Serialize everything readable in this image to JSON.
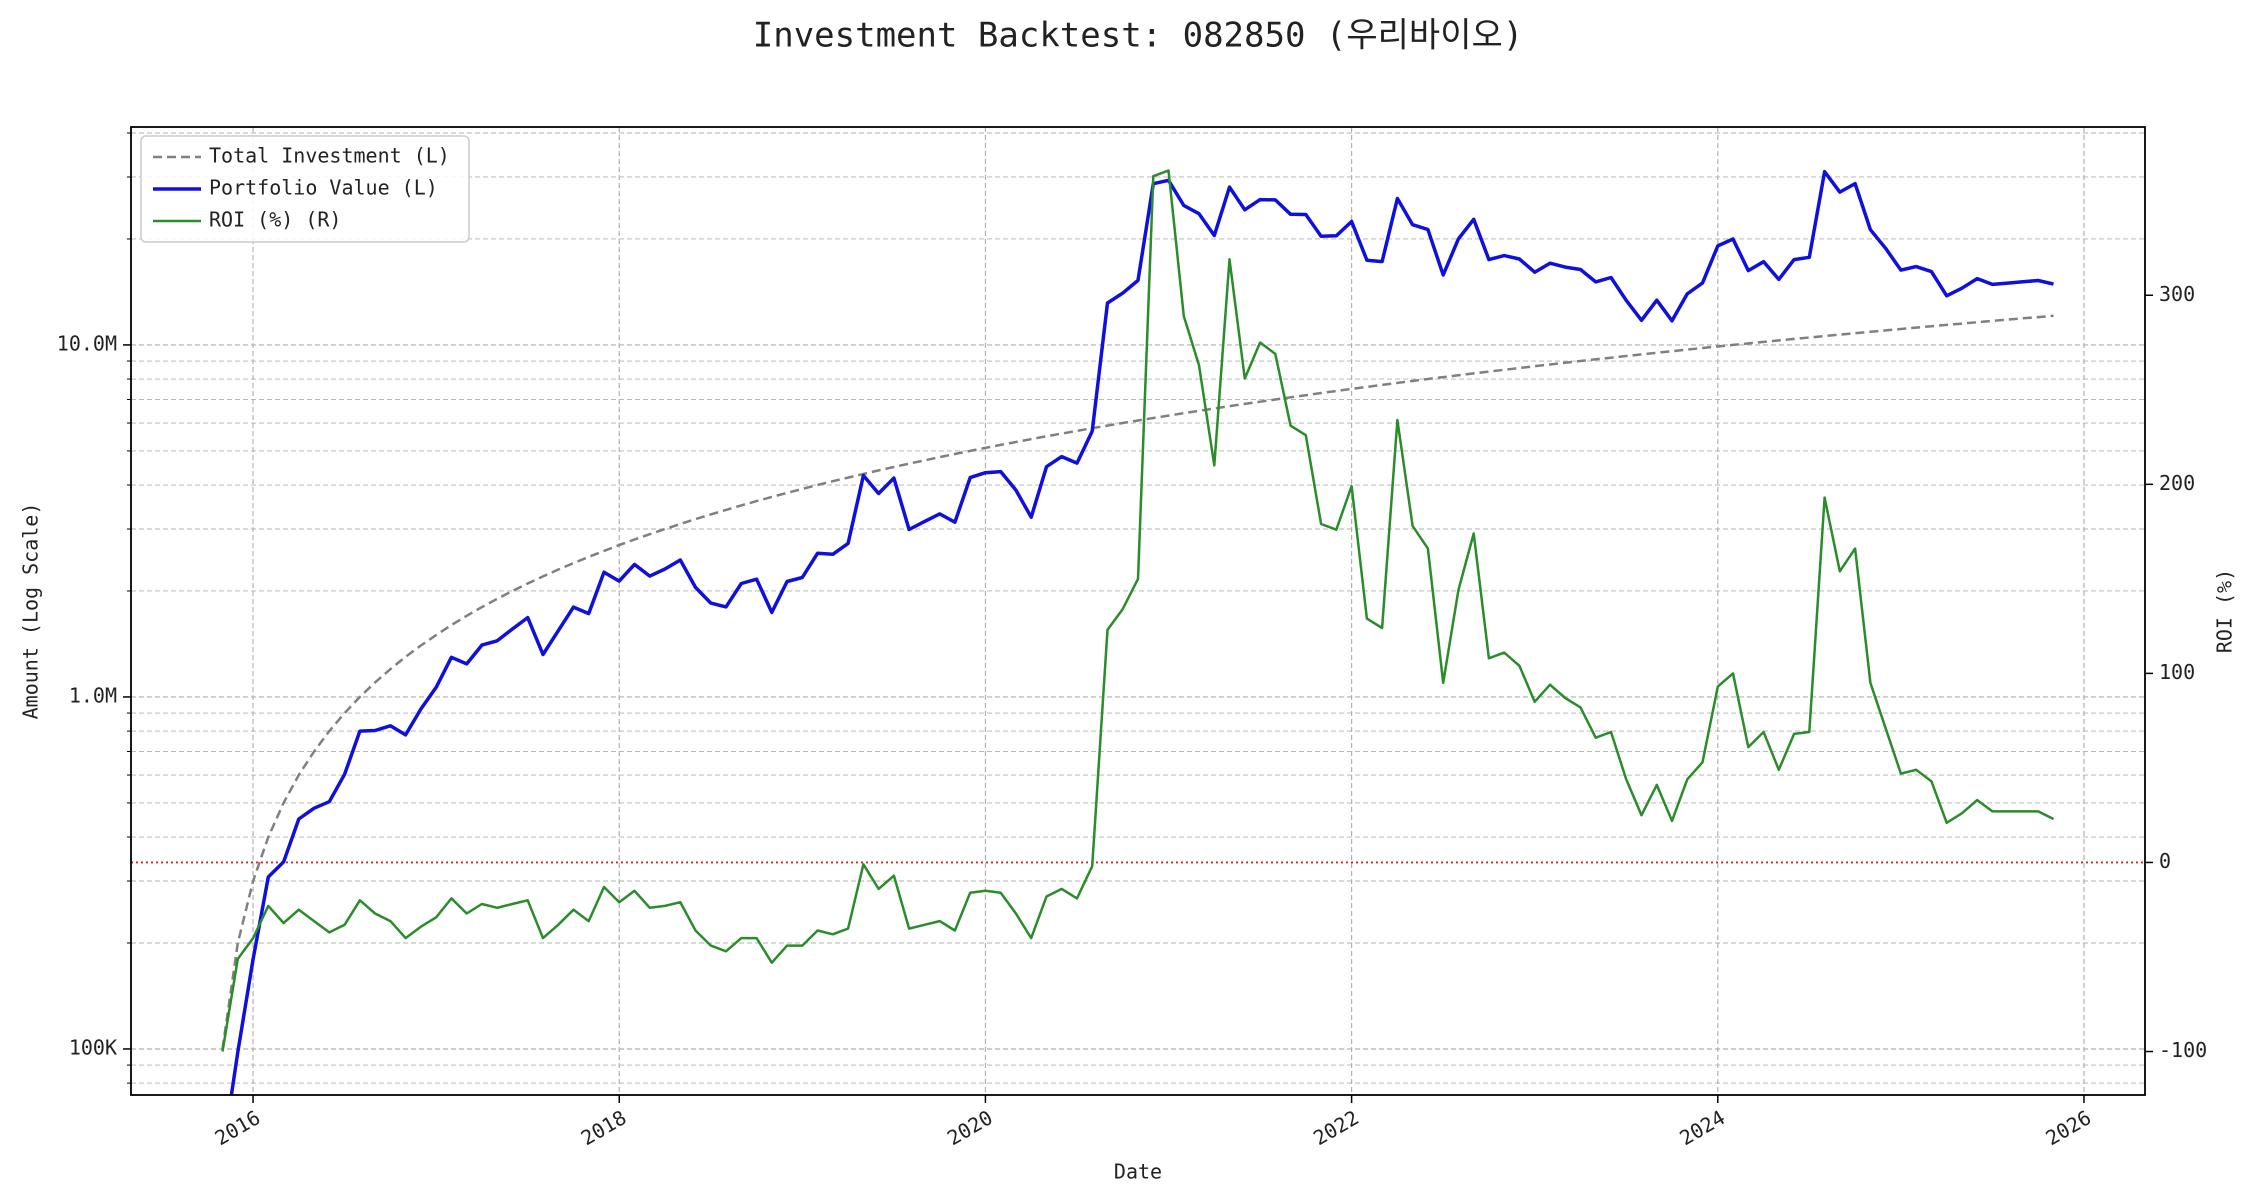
{
  "chart_data": {
    "type": "line",
    "title": "Investment Backtest: 082850 (우리바이오)",
    "x_label": "Date",
    "y_label": "Amount (Log Scale)",
    "y2_label": "ROI (%)",
    "yscale": "log",
    "grid": true,
    "legend": "upper left",
    "xlim": [
      "2015-05",
      "2026-05"
    ],
    "xticks": [
      {
        "value": "2016-01",
        "label": "2016"
      },
      {
        "value": "2018-01",
        "label": "2018"
      },
      {
        "value": "2020-01",
        "label": "2020"
      },
      {
        "value": "2022-01",
        "label": "2022"
      },
      {
        "value": "2024-01",
        "label": "2024"
      },
      {
        "value": "2026-01",
        "label": "2026"
      }
    ],
    "ylim": [
      74000,
      41600000
    ],
    "yticks": [
      {
        "value": 100000,
        "label": "100K"
      },
      {
        "value": 1000000,
        "label": "1.0M"
      },
      {
        "value": 10000000,
        "label": "10.0M"
      }
    ],
    "yminorticks": [
      80000,
      90000,
      200000,
      300000,
      400000,
      500000,
      600000,
      700000,
      800000,
      900000,
      2000000,
      3000000,
      4000000,
      5000000,
      6000000,
      7000000,
      8000000,
      9000000,
      20000000,
      30000000,
      40000000
    ],
    "y_label_color": "#1a1acc",
    "y2lim": [
      -123,
      389
    ],
    "y2ticks": [
      -100,
      0,
      100,
      200,
      300
    ],
    "y2_label_color": "#2a8c2a",
    "reference_line": {
      "axis": "y2",
      "value": 0,
      "color": "#dd2222"
    },
    "x": [
      "2015-11",
      "2015-12",
      "2016-01",
      "2016-02",
      "2016-03",
      "2016-04",
      "2016-05",
      "2016-06",
      "2016-07",
      "2016-08",
      "2016-09",
      "2016-10",
      "2016-11",
      "2016-12",
      "2017-01",
      "2017-02",
      "2017-03",
      "2017-04",
      "2017-05",
      "2017-06",
      "2017-07",
      "2017-08",
      "2017-09",
      "2017-10",
      "2017-11",
      "2017-12",
      "2018-01",
      "2018-02",
      "2018-03",
      "2018-04",
      "2018-05",
      "2018-06",
      "2018-07",
      "2018-08",
      "2018-09",
      "2018-10",
      "2018-11",
      "2018-12",
      "2019-01",
      "2019-02",
      "2019-03",
      "2019-04",
      "2019-05",
      "2019-06",
      "2019-07",
      "2019-08",
      "2019-09",
      "2019-10",
      "2019-11",
      "2019-12",
      "2020-01",
      "2020-02",
      "2020-03",
      "2020-04",
      "2020-05",
      "2020-06",
      "2020-07",
      "2020-08",
      "2020-09",
      "2020-10",
      "2020-11",
      "2020-12",
      "2021-01",
      "2021-02",
      "2021-03",
      "2021-04",
      "2021-05",
      "2021-06",
      "2021-07",
      "2021-08",
      "2021-09",
      "2021-10",
      "2021-11",
      "2021-12",
      "2022-01",
      "2022-02",
      "2022-03",
      "2022-04",
      "2022-05",
      "2022-06",
      "2022-07",
      "2022-08",
      "2022-09",
      "2022-10",
      "2022-11",
      "2022-12",
      "2023-01",
      "2023-02",
      "2023-03",
      "2023-04",
      "2023-05",
      "2023-06",
      "2023-07",
      "2023-08",
      "2023-09",
      "2023-10",
      "2023-11",
      "2023-12",
      "2024-01",
      "2024-02",
      "2024-03",
      "2024-04",
      "2024-05",
      "2024-06",
      "2024-07",
      "2024-08",
      "2024-09",
      "2024-10",
      "2024-11",
      "2024-12",
      "2025-01",
      "2025-02",
      "2025-03",
      "2025-04",
      "2025-05",
      "2025-06",
      "2025-07",
      "2025-08",
      "2025-09",
      "2025-10",
      "2025-11"
    ],
    "series": [
      {
        "name": "Total Investment (L)",
        "color": "#808080",
        "dash": true,
        "width": 2.5,
        "axis": "y",
        "values": [
          100000,
          200000,
          300000,
          400000,
          500000,
          600000,
          700000,
          800000,
          900000,
          1000000,
          1100000,
          1200000,
          1300000,
          1400000,
          1500000,
          1600000,
          1700000,
          1800000,
          1900000,
          2000000,
          2100000,
          2200000,
          2300000,
          2400000,
          2500000,
          2600000,
          2700000,
          2800000,
          2900000,
          3000000,
          3100000,
          3200000,
          3300000,
          3400000,
          3500000,
          3600000,
          3700000,
          3800000,
          3900000,
          4000000,
          4100000,
          4200000,
          4300000,
          4400000,
          4500000,
          4600000,
          4700000,
          4800000,
          4900000,
          5000000,
          5100000,
          5200000,
          5300000,
          5400000,
          5500000,
          5600000,
          5700000,
          5800000,
          5900000,
          6000000,
          6100000,
          6200000,
          6300000,
          6400000,
          6500000,
          6600000,
          6700000,
          6800000,
          6900000,
          7000000,
          7100000,
          7200000,
          7300000,
          7400000,
          7500000,
          7600000,
          7700000,
          7800000,
          7900000,
          8000000,
          8100000,
          8200000,
          8300000,
          8400000,
          8500000,
          8600000,
          8700000,
          8800000,
          8900000,
          9000000,
          9100000,
          9200000,
          9300000,
          9400000,
          9500000,
          9600000,
          9700000,
          9800000,
          9900000,
          10000000,
          10100000,
          10200000,
          10300000,
          10400000,
          10500000,
          10600000,
          10700000,
          10800000,
          10900000,
          11000000,
          11100000,
          11200000,
          11300000,
          11400000,
          11500000,
          11600000,
          11700000,
          11800000,
          11900000,
          12000000,
          12100000
        ]
      },
      {
        "name": "Portfolio Value (L)",
        "color": "#1010dd",
        "dash": false,
        "width": 3.5,
        "axis": "y",
        "values": [
          0,
          98000,
          180000,
          308000,
          340000,
          450000,
          483000,
          504000,
          603000,
          800000,
          803000,
          828000,
          780000,
          924000,
          1065000,
          1296000,
          1241000,
          1404000,
          1444000,
          1560000,
          1680000,
          1320000,
          1541000,
          1800000,
          1725000,
          2262000,
          2133000,
          2380000,
          2204000,
          2310000,
          2449000,
          2048000,
          1848000,
          1802000,
          2100000,
          2160000,
          1739000,
          2128000,
          2184000,
          2560000,
          2542000,
          2730000,
          4257000,
          3784000,
          4185000,
          2990000,
          3149000,
          3312000,
          3136000,
          4200000,
          4335000,
          4368000,
          3869000,
          3240000,
          4510000,
          4816000,
          4617000,
          5684000,
          13157000,
          14040000,
          15250000,
          28706000,
          29358000,
          24896000,
          23595000,
          20460000,
          28073000,
          24208000,
          25875000,
          25830000,
          23501000,
          23472000,
          20367000,
          20424000,
          22425000,
          17404000,
          17248000,
          26052000,
          21962000,
          21280000,
          15795000,
          20008000,
          22742000,
          17472000,
          17935000,
          17544000,
          16095000,
          17072000,
          16643000,
          16380000,
          15106000,
          15548000,
          13392000,
          11750000,
          13395000,
          11712000,
          13968000,
          14994000,
          19107000,
          20000000,
          16261000,
          17238000,
          15347000,
          17472000,
          17745000,
          31058000,
          27178000,
          28728000,
          21255000,
          18810000,
          16317000,
          16688000,
          16159000,
          13794000,
          14490000,
          15428000,
          14859000,
          14986000,
          15113000,
          15240000,
          14883000
        ]
      },
      {
        "name": "ROI (%) (R)",
        "color": "#2a8c2a",
        "dash": false,
        "width": 2.5,
        "axis": "y2",
        "values": [
          -100,
          -51,
          -40,
          -23,
          -32,
          -25,
          -31,
          -37,
          -33,
          -20,
          -27,
          -31,
          -40,
          -34,
          -29,
          -19,
          -27,
          -22,
          -24,
          -22,
          -20,
          -40,
          -33,
          -25,
          -31,
          -13,
          -21,
          -15,
          -24,
          -23,
          -21,
          -36,
          -44,
          -47,
          -40,
          -40,
          -53,
          -44,
          -44,
          -36,
          -38,
          -35,
          -1,
          -14,
          -7,
          -35,
          -33,
          -31,
          -36,
          -16,
          -15,
          -16,
          -27,
          -40,
          -18,
          -14,
          -19,
          -2,
          123,
          134,
          150,
          363,
          366,
          289,
          263,
          210,
          319,
          256,
          275,
          269,
          231,
          226,
          179,
          176,
          199,
          129,
          124,
          234,
          178,
          166,
          95,
          144,
          174,
          108,
          111,
          104,
          85,
          94,
          87,
          82,
          66,
          69,
          44,
          25,
          41,
          22,
          44,
          53,
          93,
          100,
          61,
          69,
          49,
          68,
          69,
          193,
          154,
          166,
          95,
          71,
          47,
          49,
          43,
          21,
          26,
          33,
          27,
          27,
          27,
          27,
          23
        ]
      }
    ]
  }
}
